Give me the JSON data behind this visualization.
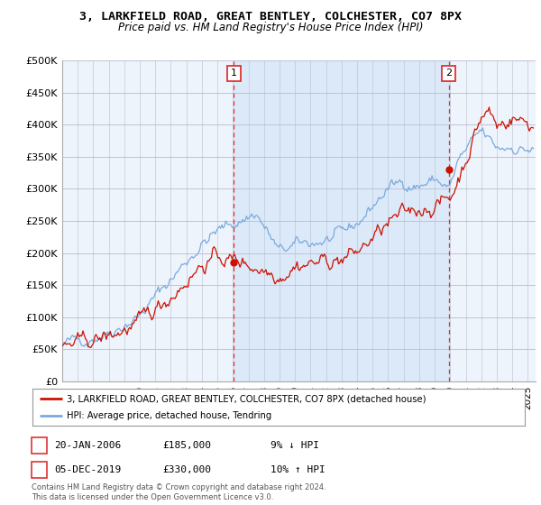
{
  "title": "3, LARKFIELD ROAD, GREAT BENTLEY, COLCHESTER, CO7 8PX",
  "subtitle": "Price paid vs. HM Land Registry's House Price Index (HPI)",
  "ylabel_ticks": [
    "£0",
    "£50K",
    "£100K",
    "£150K",
    "£200K",
    "£250K",
    "£300K",
    "£350K",
    "£400K",
    "£450K",
    "£500K"
  ],
  "ytick_values": [
    0,
    50000,
    100000,
    150000,
    200000,
    250000,
    300000,
    350000,
    400000,
    450000,
    500000
  ],
  "ylim": [
    0,
    500000
  ],
  "xlim_start": 1995.0,
  "xlim_end": 2025.5,
  "sale1_x": 2006.05,
  "sale1_y": 185000,
  "sale1_label": "1",
  "sale2_x": 2019.92,
  "sale2_y": 330000,
  "sale2_label": "2",
  "legend_line1": "3, LARKFIELD ROAD, GREAT BENTLEY, COLCHESTER, CO7 8PX (detached house)",
  "legend_line2": "HPI: Average price, detached house, Tendring",
  "annotation1_date": "20-JAN-2006",
  "annotation1_price": "£185,000",
  "annotation1_hpi": "9% ↓ HPI",
  "annotation2_date": "05-DEC-2019",
  "annotation2_price": "£330,000",
  "annotation2_hpi": "10% ↑ HPI",
  "footer": "Contains HM Land Registry data © Crown copyright and database right 2024.\nThis data is licensed under the Open Government Licence v3.0.",
  "hpi_color": "#7aaadd",
  "price_color": "#cc1100",
  "vline_color": "#dd3333",
  "background_color": "#ffffff",
  "plot_bg_color": "#eef4fc",
  "grid_color": "#cccccc",
  "shade_color": "#ddeeff"
}
